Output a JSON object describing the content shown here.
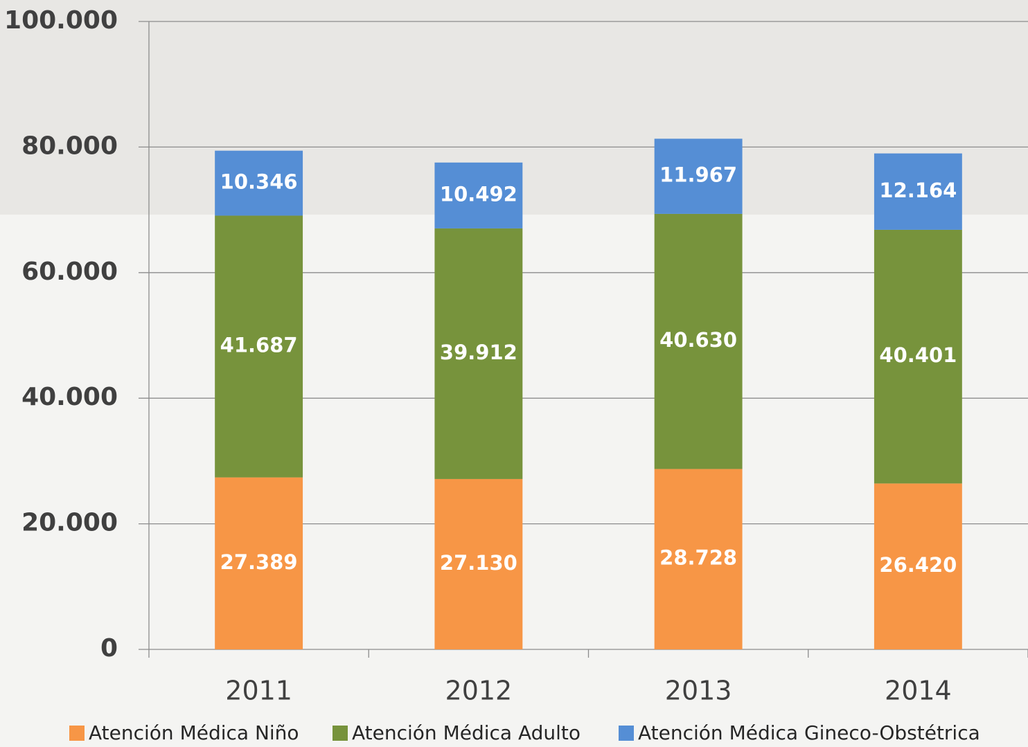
{
  "chart_data": {
    "type": "stacked_bar",
    "categories": [
      "2011",
      "2012",
      "2013",
      "2014"
    ],
    "series": [
      {
        "name": "Atención Médica Niño",
        "color": "#f79646",
        "values": [
          27389,
          27130,
          28728,
          26420
        ],
        "value_labels": [
          "27.389",
          "27.130",
          "28.728",
          "26.420"
        ]
      },
      {
        "name": "Atención Médica Adulto",
        "color": "#77933c",
        "values": [
          41687,
          39912,
          40630,
          40401
        ],
        "value_labels": [
          "41.687",
          "39.912",
          "40.630",
          "40.401"
        ]
      },
      {
        "name": "Atención Médica Gineco-Obstétrica",
        "color": "#558ed5",
        "values": [
          10346,
          10492,
          11967,
          12164
        ],
        "value_labels": [
          "10.346",
          "10.492",
          "11.967",
          "12.164"
        ]
      }
    ],
    "ylim": [
      0,
      100000
    ],
    "yticks": [
      0,
      {
        "value": 20000,
        "label": "20.000"
      },
      {
        "value": 40000,
        "label": "40.000"
      },
      {
        "value": 60000,
        "label": "60.000"
      },
      {
        "value": 80000,
        "label": "80.000"
      },
      {
        "value": 100000,
        "label": "100.000"
      }
    ],
    "grid": true
  }
}
